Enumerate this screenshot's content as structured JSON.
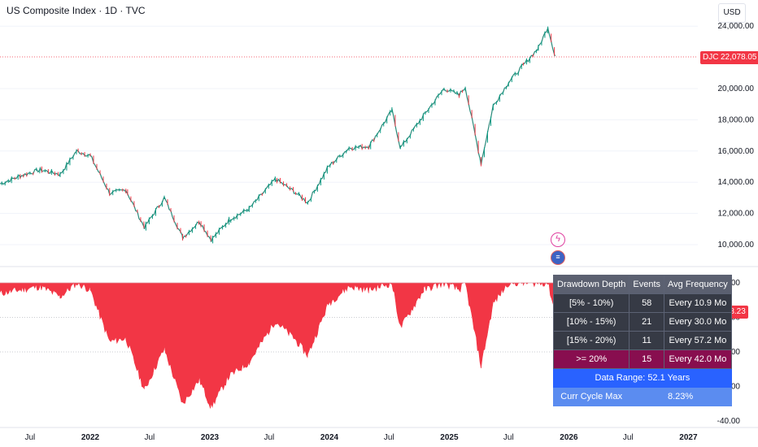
{
  "header": {
    "title": "US Composite Index · 1D · TVC",
    "currency": "USD"
  },
  "price_label": {
    "ticker": "DJC",
    "value": "22,078.05"
  },
  "drawdown_label": "-8.23",
  "colors": {
    "up": "#089981",
    "down": "#f23645",
    "drawdown": "#f23645",
    "table_bg": "#363a45",
    "highlight": "#880e4f",
    "range_bg": "#2962ff",
    "curr_bg": "#5b8cf0"
  },
  "table": {
    "headers": [
      "Drawdown Depth",
      "Events",
      "Avg Frequency"
    ],
    "rows": [
      [
        "[5% - 10%)",
        "58",
        "Every 10.9 Mo"
      ],
      [
        "[10% - 15%)",
        "21",
        "Every 30.0 Mo"
      ],
      [
        "[15% - 20%)",
        "11",
        "Every 57.2 Mo"
      ],
      [
        ">= 20%",
        "15",
        "Every 42.0 Mo"
      ]
    ],
    "data_range": "Data Range: 52.1 Years",
    "curr_label": "Curr Cycle Max",
    "curr_value": "8.23%"
  },
  "chart_data": [
    {
      "type": "line",
      "title": "US Composite Index · 1D · TVC",
      "x_ticks": [
        "Jul",
        "2022",
        "Jul",
        "2023",
        "Jul",
        "2024",
        "Jul",
        "2025",
        "Jul",
        "2026",
        "Jul",
        "2027"
      ],
      "y_ticks": [
        "10,000.00",
        "12,000.00",
        "14,000.00",
        "16,000.00",
        "18,000.00",
        "20,000.00",
        "24,000.00"
      ],
      "ylim": [
        9500,
        24200
      ],
      "series": [
        {
          "x": [
            "2021-04-01",
            "2021-06-01",
            "2021-08-01",
            "2021-10-01",
            "2021-11-20",
            "2022-01-01",
            "2022-03-01",
            "2022-04-20",
            "2022-06-15",
            "2022-08-15",
            "2022-10-10",
            "2022-11-30",
            "2023-01-05",
            "2023-03-01",
            "2023-05-01",
            "2023-07-20",
            "2023-09-15",
            "2023-10-27",
            "2023-12-29",
            "2024-03-01",
            "2024-05-01",
            "2024-07-10",
            "2024-08-05",
            "2024-10-15",
            "2024-12-16",
            "2025-01-31",
            "2025-02-19",
            "2025-04-08",
            "2025-05-15",
            "2025-07-01",
            "2025-08-15",
            "2025-09-30",
            "2025-10-29",
            "2025-11-20"
          ],
          "y": [
            13900,
            14400,
            14800,
            14500,
            16000,
            15700,
            13300,
            13500,
            11100,
            13000,
            10450,
            11500,
            10300,
            11600,
            12300,
            14200,
            13400,
            12700,
            15000,
            16200,
            16300,
            18600,
            16200,
            18300,
            20000,
            19600,
            20100,
            15200,
            18900,
            20400,
            21500,
            22600,
            23950,
            22078
          ]
        }
      ]
    },
    {
      "type": "area",
      "title": "",
      "y_ticks": [
        "0.00",
        "-10.00",
        "-20.00",
        "-30.00",
        "-40.00"
      ],
      "ylim": [
        -40,
        0
      ],
      "series": [
        {
          "x": [
            "2021-04-01",
            "2021-06-01",
            "2021-08-01",
            "2021-10-01",
            "2021-11-20",
            "2022-01-01",
            "2022-03-01",
            "2022-04-20",
            "2022-06-15",
            "2022-08-15",
            "2022-10-10",
            "2022-11-30",
            "2023-01-05",
            "2023-03-01",
            "2023-05-01",
            "2023-07-20",
            "2023-09-15",
            "2023-10-27",
            "2023-12-29",
            "2024-03-01",
            "2024-05-01",
            "2024-07-10",
            "2024-08-05",
            "2024-10-15",
            "2024-12-16",
            "2025-01-31",
            "2025-02-19",
            "2025-04-08",
            "2025-05-15",
            "2025-07-01",
            "2025-08-15",
            "2025-09-30",
            "2025-10-29",
            "2025-11-20"
          ],
          "y": [
            -3,
            -2,
            -1,
            -4,
            0,
            -2,
            -17,
            -16,
            -31,
            -19,
            -35,
            -28,
            -36,
            -27,
            -23,
            -11,
            -16,
            -21,
            -6,
            -1,
            -2,
            0,
            -13,
            -2,
            0,
            -2,
            0,
            -24,
            -6,
            0,
            0,
            0,
            0,
            -8.23
          ]
        }
      ]
    }
  ]
}
